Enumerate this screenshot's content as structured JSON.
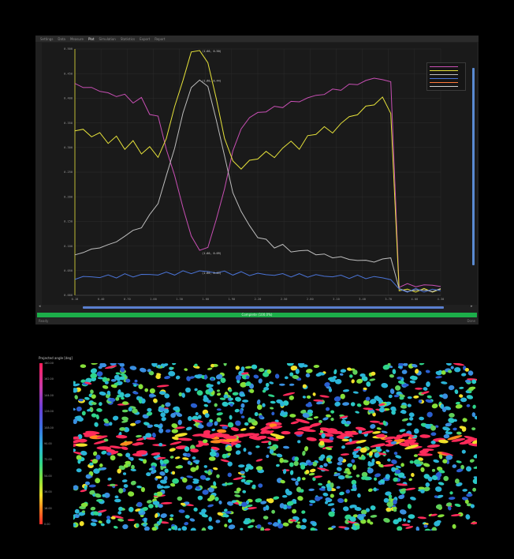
{
  "window": {
    "menu": [
      "Settings",
      "Data",
      "Measure",
      "Plot",
      "Simulation",
      "Statistics",
      "Export",
      "Report"
    ],
    "active_menu_index": 3,
    "progress": {
      "label": "Complete (100.0%)",
      "value": 100
    },
    "status": {
      "left": "Ready",
      "right": "Done"
    }
  },
  "chart_data": {
    "type": "line",
    "x": [
      0.1,
      0.2,
      0.3,
      0.4,
      0.5,
      0.6,
      0.7,
      0.8,
      0.9,
      1.0,
      1.1,
      1.2,
      1.3,
      1.4,
      1.5,
      1.6,
      1.7,
      1.8,
      1.9,
      2.0,
      2.1,
      2.2,
      2.3,
      2.4,
      2.5,
      2.6,
      2.7,
      2.8,
      2.9,
      3.0,
      3.1,
      3.2,
      3.3,
      3.4,
      3.5,
      3.6,
      3.7,
      3.8,
      3.9,
      4.0,
      4.1,
      4.2,
      4.3,
      4.4,
      4.5
    ],
    "xticks": [
      "0.10",
      "0.40",
      "0.70",
      "1.00",
      "1.30",
      "1.60",
      "1.90",
      "2.20",
      "2.50",
      "2.80",
      "3.10",
      "3.40",
      "3.70",
      "4.00",
      "4.30"
    ],
    "yticks": [
      "0.000",
      "0.050",
      "0.100",
      "0.150",
      "0.200",
      "0.250",
      "0.300",
      "0.350",
      "0.400",
      "0.450",
      "0.500"
    ],
    "ylim": [
      0,
      0.5
    ],
    "series": [
      {
        "name": "",
        "color": "#c84fb4",
        "values": [
          0.43,
          0.42,
          0.425,
          0.41,
          0.415,
          0.4,
          0.41,
          0.39,
          0.4,
          0.37,
          0.36,
          0.3,
          0.24,
          0.18,
          0.12,
          0.09,
          0.1,
          0.15,
          0.22,
          0.29,
          0.34,
          0.36,
          0.37,
          0.375,
          0.38,
          0.385,
          0.39,
          0.395,
          0.4,
          0.405,
          0.41,
          0.415,
          0.42,
          0.425,
          0.43,
          0.435,
          0.44,
          0.44,
          0.43,
          0.02,
          0.02,
          0.02,
          0.02,
          0.02,
          0.02
        ]
      },
      {
        "name": "",
        "color": "#e6e23a",
        "values": [
          0.33,
          0.34,
          0.32,
          0.33,
          0.31,
          0.32,
          0.3,
          0.31,
          0.29,
          0.3,
          0.28,
          0.32,
          0.38,
          0.44,
          0.49,
          0.5,
          0.47,
          0.4,
          0.32,
          0.27,
          0.26,
          0.27,
          0.28,
          0.29,
          0.28,
          0.3,
          0.31,
          0.3,
          0.32,
          0.33,
          0.34,
          0.33,
          0.35,
          0.36,
          0.37,
          0.38,
          0.39,
          0.4,
          0.37,
          0.01,
          0.01,
          0.01,
          0.01,
          0.01,
          0.01
        ]
      },
      {
        "name": "",
        "color": "#bdbdbd",
        "values": [
          0.08,
          0.09,
          0.09,
          0.1,
          0.1,
          0.11,
          0.12,
          0.13,
          0.14,
          0.16,
          0.19,
          0.24,
          0.3,
          0.37,
          0.42,
          0.44,
          0.42,
          0.36,
          0.28,
          0.21,
          0.17,
          0.14,
          0.12,
          0.11,
          0.1,
          0.1,
          0.09,
          0.09,
          0.09,
          0.085,
          0.08,
          0.08,
          0.075,
          0.075,
          0.07,
          0.07,
          0.07,
          0.07,
          0.08,
          0.01,
          0.01,
          0.01,
          0.01,
          0.01,
          0.01
        ]
      },
      {
        "name": "",
        "color": "#4a73d6",
        "values": [
          0.035,
          0.037,
          0.037,
          0.038,
          0.038,
          0.039,
          0.04,
          0.04,
          0.041,
          0.042,
          0.043,
          0.044,
          0.045,
          0.046,
          0.047,
          0.048,
          0.048,
          0.047,
          0.046,
          0.045,
          0.044,
          0.043,
          0.043,
          0.042,
          0.042,
          0.041,
          0.041,
          0.04,
          0.04,
          0.04,
          0.039,
          0.039,
          0.038,
          0.038,
          0.037,
          0.037,
          0.036,
          0.036,
          0.033,
          0.01,
          0.01,
          0.01,
          0.01,
          0.01,
          0.01
        ]
      }
    ],
    "annotations": [
      "(1.60, 0.50)",
      "(1.60, 0.44)",
      "(1.60, 0.09)",
      "(1.60, 0.05)"
    ],
    "legend": {
      "placement": "top-right",
      "entries": [
        {
          "label": "",
          "color": "#c84fb4"
        },
        {
          "label": "",
          "color": "#e6e23a"
        },
        {
          "label": "",
          "color": "#bdbdbd"
        },
        {
          "label": "",
          "color": "#4a73d6"
        },
        {
          "label": "",
          "color": "#ff7a3a"
        },
        {
          "label": "",
          "color": "#cfcfcf"
        }
      ]
    },
    "grid": true
  },
  "colorbar": {
    "title": "Projected angle [deg]",
    "ticks": [
      "180.00",
      "162.00",
      "144.00",
      "126.00",
      "108.00",
      "90.00",
      "72.00",
      "54.00",
      "36.00",
      "18.00",
      "0.00"
    ]
  }
}
